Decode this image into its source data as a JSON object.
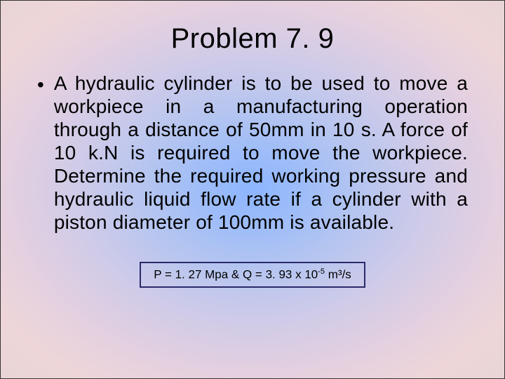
{
  "slide": {
    "background": {
      "gradient_type": "radial",
      "center_color": "#8db5ff",
      "mid_color": "#d0cbe8",
      "outer_color": "#e8d4d6"
    },
    "title": {
      "text": "Problem 7. 9",
      "font_size_pt": 40,
      "color": "#000000",
      "align": "center"
    },
    "bullet": {
      "marker": "•",
      "text": "A hydraulic cylinder is to be used to move a workpiece in a manufacturing operation through a distance of 50mm in 10 s. A force of 10 k.N is required to move the workpiece. Determine the required working pressure and hydraulic liquid flow rate if a cylinder with a piston diameter of 100mm is available.",
      "font_size_pt": 28,
      "color": "#000000",
      "align": "justify"
    },
    "answer": {
      "prefix": "P = 1. 27 Mpa  & Q = 3. 93 x 10",
      "exponent": "-5",
      "suffix": "  m³/s",
      "border_color": "#2a2a6a",
      "font_size_pt": 17
    }
  }
}
